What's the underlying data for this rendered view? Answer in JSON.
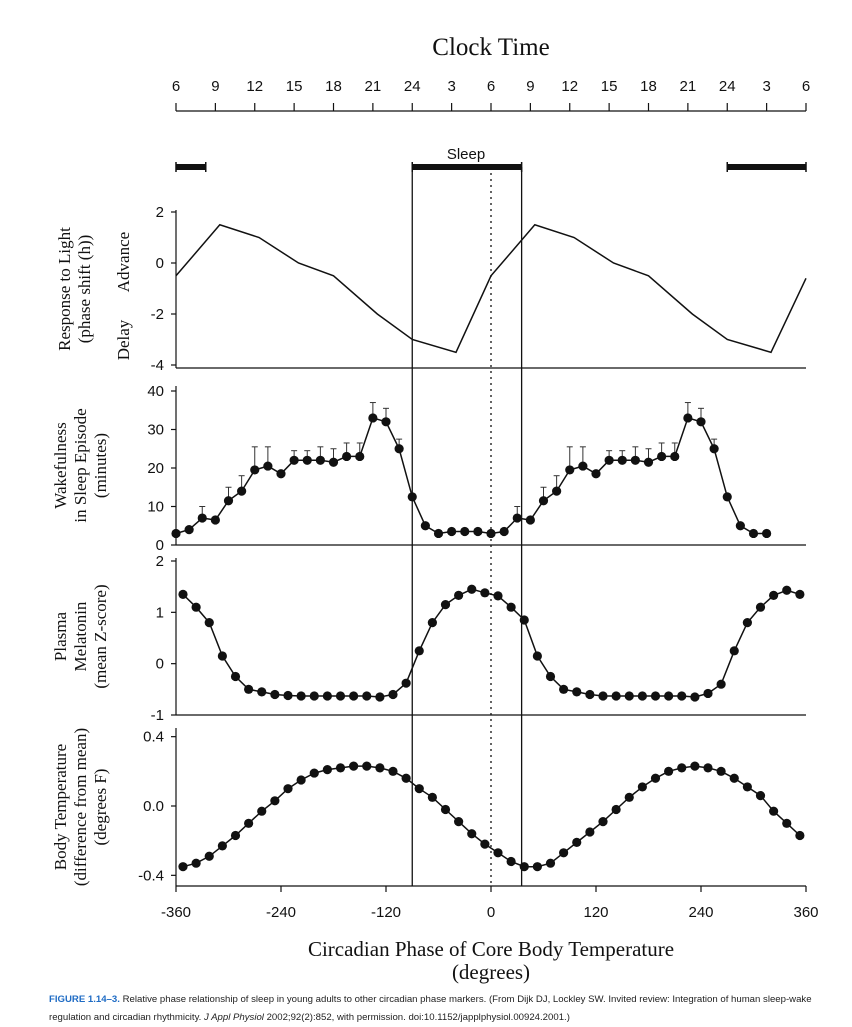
{
  "figure": {
    "top_axis_title": "Clock Time",
    "clock_ticks": [
      "6",
      "9",
      "12",
      "15",
      "18",
      "21",
      "24",
      "3",
      "6",
      "9",
      "12",
      "15",
      "18",
      "21",
      "24",
      "3",
      "6"
    ],
    "sleep_label": "Sleep",
    "bottom_axis_title": "Circadian Phase of Core Body Temperature",
    "bottom_axis_units": "(degrees)",
    "x_ticks": [
      "-360",
      "-240",
      "-120",
      "0",
      "120",
      "240",
      "360"
    ]
  },
  "caption": {
    "label": "FIGURE 1.14–3.",
    "text": "Relative phase relationship of sleep in young adults to other circadian phase markers. (From Dijk DJ, Lockley SW. Invited review: Integration of human sleep-wake regulation and circadian rhythmicity.",
    "journal": "J Appl Physiol",
    "citation": "2002;92(2):852, with permission. doi:10.1152/japplphysiol.00924.2001.)"
  },
  "chart_data": [
    {
      "type": "line",
      "panel": "sleep",
      "x_range": [
        -360,
        360
      ],
      "series": [
        {
          "name": "Sleep",
          "segments": [
            [
              -360,
              -326
            ],
            [
              -90,
              35
            ],
            [
              270,
              360
            ]
          ]
        }
      ],
      "text": "Sleep"
    },
    {
      "type": "line",
      "panel": "light-response",
      "ylabel_lines": [
        "Response to Light",
        "(phase shift (h))"
      ],
      "side_labels": [
        "Advance",
        "Delay"
      ],
      "ylim": [
        -4,
        2
      ],
      "yticks": [
        "2",
        "0",
        "-2",
        "-4"
      ],
      "x": [
        -360,
        -310,
        -265,
        -220,
        -180,
        -130,
        -90,
        -40,
        0,
        50,
        95,
        140,
        180,
        230,
        270,
        320,
        360
      ],
      "values": [
        -0.5,
        1.5,
        1.0,
        0.0,
        -0.5,
        -2.0,
        -3.0,
        -3.5,
        -0.5,
        1.5,
        1.0,
        0.0,
        -0.5,
        -2.0,
        -3.0,
        -3.5,
        -0.6
      ]
    },
    {
      "type": "line",
      "panel": "wakefulness",
      "ylabel_lines": [
        "Wakefulness",
        "in Sleep Episode",
        "(minutes)"
      ],
      "ylim": [
        0,
        40
      ],
      "yticks": [
        "40",
        "30",
        "20",
        "10",
        "0"
      ],
      "x": [
        -360,
        -345,
        -330,
        -315,
        -300,
        -285,
        -270,
        -255,
        -240,
        -225,
        -210,
        -195,
        -180,
        -165,
        -150,
        -135,
        -120,
        -105,
        -90,
        -75,
        -60,
        -45,
        -30,
        -15,
        0,
        15,
        30,
        45,
        60,
        75,
        90,
        105,
        120,
        135,
        150,
        165,
        180,
        195,
        210,
        225,
        240,
        255,
        270,
        285,
        300,
        315
      ],
      "values": [
        3,
        4,
        7,
        6.5,
        11.5,
        14,
        19.5,
        20.5,
        18.5,
        22,
        22,
        22,
        21.5,
        23,
        23,
        33,
        32,
        25,
        12.5,
        5,
        3,
        3.5,
        3.5,
        3.5,
        3,
        3.5,
        7,
        6.5,
        11.5,
        14,
        19.5,
        20.5,
        18.5,
        22,
        22,
        22,
        21.5,
        23,
        23,
        33,
        32,
        25,
        12.5,
        5,
        3,
        3
      ],
      "error": [
        0,
        0,
        3,
        0,
        3.5,
        4,
        6,
        5,
        0,
        2.5,
        2.5,
        3.5,
        3.5,
        3.5,
        3.5,
        4,
        3.5,
        2.5,
        0,
        0,
        0,
        0,
        0,
        0,
        0,
        0,
        3,
        0,
        3.5,
        4,
        6,
        5,
        0,
        2.5,
        2.5,
        3.5,
        3.5,
        3.5,
        3.5,
        4,
        3.5,
        2.5,
        0,
        0,
        0,
        0
      ]
    },
    {
      "type": "line",
      "panel": "melatonin",
      "ylabel_lines": [
        "Plasma",
        "Melatonin",
        "(mean Z-score)"
      ],
      "ylim": [
        -1,
        2
      ],
      "yticks": [
        "2",
        "1",
        "0",
        "-1"
      ],
      "x": [
        -352,
        -337,
        -322,
        -307,
        -292,
        -277,
        -262,
        -247,
        -232,
        -217,
        -202,
        -187,
        -172,
        -157,
        -142,
        -127,
        -112,
        -97,
        -82,
        -67,
        -52,
        -37,
        -22,
        -7,
        8,
        23,
        38,
        53,
        68,
        83,
        98,
        113,
        128,
        143,
        158,
        173,
        188,
        203,
        218,
        233,
        248,
        263,
        278,
        293,
        308,
        323,
        338,
        353
      ],
      "values": [
        1.35,
        1.1,
        0.8,
        0.15,
        -0.25,
        -0.5,
        -0.55,
        -0.6,
        -0.62,
        -0.63,
        -0.63,
        -0.63,
        -0.63,
        -0.63,
        -0.63,
        -0.65,
        -0.6,
        -0.38,
        0.25,
        0.8,
        1.15,
        1.33,
        1.45,
        1.38,
        1.32,
        1.1,
        0.85,
        0.15,
        -0.25,
        -0.5,
        -0.55,
        -0.6,
        -0.63,
        -0.63,
        -0.63,
        -0.63,
        -0.63,
        -0.63,
        -0.63,
        -0.65,
        -0.58,
        -0.4,
        0.25,
        0.8,
        1.1,
        1.33,
        1.43,
        1.35
      ]
    },
    {
      "type": "line",
      "panel": "body-temperature",
      "ylabel_lines": [
        "Body Temperature",
        "(difference from mean)",
        "(degrees F)"
      ],
      "ylim": [
        -0.45,
        0.45
      ],
      "yticks": [
        "0.4",
        "0.0",
        "-0.4"
      ],
      "x": [
        -352,
        -337,
        -322,
        -307,
        -292,
        -277,
        -262,
        -247,
        -232,
        -217,
        -202,
        -187,
        -172,
        -157,
        -142,
        -127,
        -112,
        -97,
        -82,
        -67,
        -52,
        -37,
        -22,
        -7,
        8,
        23,
        38,
        53,
        68,
        83,
        98,
        113,
        128,
        143,
        158,
        173,
        188,
        203,
        218,
        233,
        248,
        263,
        278,
        293,
        308,
        323,
        338,
        353
      ],
      "values": [
        -0.35,
        -0.33,
        -0.29,
        -0.23,
        -0.17,
        -0.1,
        -0.03,
        0.03,
        0.1,
        0.15,
        0.19,
        0.21,
        0.22,
        0.23,
        0.23,
        0.22,
        0.2,
        0.16,
        0.1,
        0.05,
        -0.02,
        -0.09,
        -0.16,
        -0.22,
        -0.27,
        -0.32,
        -0.35,
        -0.35,
        -0.33,
        -0.27,
        -0.21,
        -0.15,
        -0.09,
        -0.02,
        0.05,
        0.11,
        0.16,
        0.2,
        0.22,
        0.23,
        0.22,
        0.2,
        0.16,
        0.11,
        0.06,
        -0.03,
        -0.1,
        -0.17
      ]
    }
  ]
}
